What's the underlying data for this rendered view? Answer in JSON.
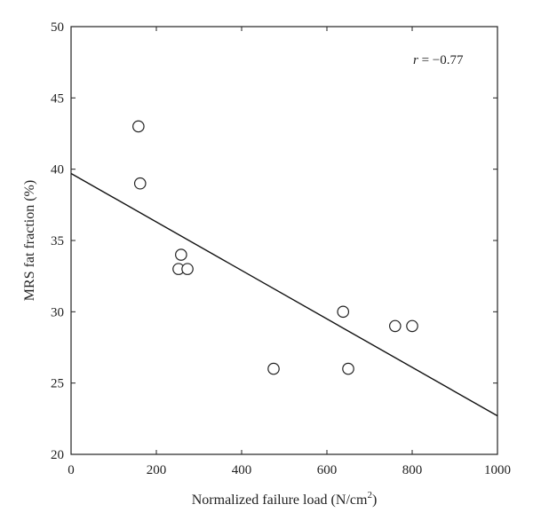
{
  "chart_data": {
    "type": "scatter",
    "title": "",
    "xlabel": "Normalized failure load (N/cm",
    "xlabel_superscript": "2",
    "xlabel_suffix": ")",
    "ylabel": "MRS fat fraction (%)",
    "xlim": [
      0,
      1000
    ],
    "ylim": [
      20,
      50
    ],
    "xticks": [
      0,
      200,
      400,
      600,
      800,
      1000
    ],
    "yticks": [
      20,
      25,
      30,
      35,
      40,
      45,
      50
    ],
    "grid": false,
    "annotation": {
      "symbol": "r",
      "text": " = −0.77"
    },
    "series": [
      {
        "marker": "open-circle",
        "points": [
          {
            "x": 158,
            "y": 43
          },
          {
            "x": 162,
            "y": 39
          },
          {
            "x": 258,
            "y": 34
          },
          {
            "x": 252,
            "y": 33
          },
          {
            "x": 273,
            "y": 33
          },
          {
            "x": 475,
            "y": 26
          },
          {
            "x": 638,
            "y": 30
          },
          {
            "x": 650,
            "y": 26
          },
          {
            "x": 760,
            "y": 29
          },
          {
            "x": 800,
            "y": 29
          }
        ]
      }
    ],
    "fit_line": {
      "x": [
        0,
        1000
      ],
      "y": [
        39.7,
        22.7
      ]
    },
    "colors": {
      "axis": "#222222",
      "marker_fill": "#ffffff",
      "line": "#111111"
    }
  }
}
